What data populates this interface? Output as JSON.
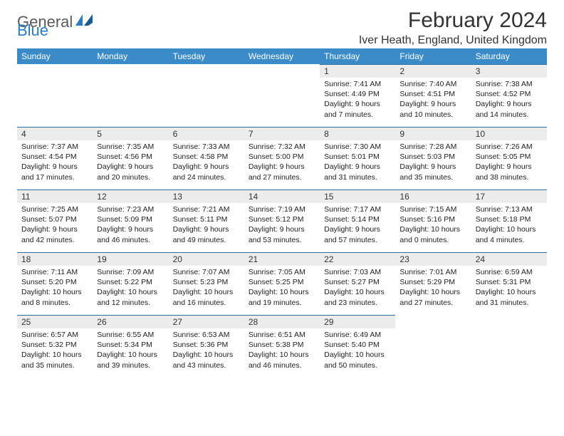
{
  "brand": {
    "text1": "General",
    "text2": "Blue"
  },
  "title": "February 2024",
  "location": "Iver Heath, England, United Kingdom",
  "colors": {
    "header_bg": "#3b8bc9",
    "header_fg": "#ffffff",
    "daynum_bg": "#ececec",
    "daynum_border": "#2d6fa3",
    "logo_gray": "#5a5a5a",
    "logo_blue": "#2d7bbf"
  },
  "day_names": [
    "Sunday",
    "Monday",
    "Tuesday",
    "Wednesday",
    "Thursday",
    "Friday",
    "Saturday"
  ],
  "weeks": [
    [
      null,
      null,
      null,
      null,
      {
        "n": "1",
        "sr": "Sunrise: 7:41 AM",
        "ss": "Sunset: 4:49 PM",
        "dl": "Daylight: 9 hours and 7 minutes."
      },
      {
        "n": "2",
        "sr": "Sunrise: 7:40 AM",
        "ss": "Sunset: 4:51 PM",
        "dl": "Daylight: 9 hours and 10 minutes."
      },
      {
        "n": "3",
        "sr": "Sunrise: 7:38 AM",
        "ss": "Sunset: 4:52 PM",
        "dl": "Daylight: 9 hours and 14 minutes."
      }
    ],
    [
      {
        "n": "4",
        "sr": "Sunrise: 7:37 AM",
        "ss": "Sunset: 4:54 PM",
        "dl": "Daylight: 9 hours and 17 minutes."
      },
      {
        "n": "5",
        "sr": "Sunrise: 7:35 AM",
        "ss": "Sunset: 4:56 PM",
        "dl": "Daylight: 9 hours and 20 minutes."
      },
      {
        "n": "6",
        "sr": "Sunrise: 7:33 AM",
        "ss": "Sunset: 4:58 PM",
        "dl": "Daylight: 9 hours and 24 minutes."
      },
      {
        "n": "7",
        "sr": "Sunrise: 7:32 AM",
        "ss": "Sunset: 5:00 PM",
        "dl": "Daylight: 9 hours and 27 minutes."
      },
      {
        "n": "8",
        "sr": "Sunrise: 7:30 AM",
        "ss": "Sunset: 5:01 PM",
        "dl": "Daylight: 9 hours and 31 minutes."
      },
      {
        "n": "9",
        "sr": "Sunrise: 7:28 AM",
        "ss": "Sunset: 5:03 PM",
        "dl": "Daylight: 9 hours and 35 minutes."
      },
      {
        "n": "10",
        "sr": "Sunrise: 7:26 AM",
        "ss": "Sunset: 5:05 PM",
        "dl": "Daylight: 9 hours and 38 minutes."
      }
    ],
    [
      {
        "n": "11",
        "sr": "Sunrise: 7:25 AM",
        "ss": "Sunset: 5:07 PM",
        "dl": "Daylight: 9 hours and 42 minutes."
      },
      {
        "n": "12",
        "sr": "Sunrise: 7:23 AM",
        "ss": "Sunset: 5:09 PM",
        "dl": "Daylight: 9 hours and 46 minutes."
      },
      {
        "n": "13",
        "sr": "Sunrise: 7:21 AM",
        "ss": "Sunset: 5:11 PM",
        "dl": "Daylight: 9 hours and 49 minutes."
      },
      {
        "n": "14",
        "sr": "Sunrise: 7:19 AM",
        "ss": "Sunset: 5:12 PM",
        "dl": "Daylight: 9 hours and 53 minutes."
      },
      {
        "n": "15",
        "sr": "Sunrise: 7:17 AM",
        "ss": "Sunset: 5:14 PM",
        "dl": "Daylight: 9 hours and 57 minutes."
      },
      {
        "n": "16",
        "sr": "Sunrise: 7:15 AM",
        "ss": "Sunset: 5:16 PM",
        "dl": "Daylight: 10 hours and 0 minutes."
      },
      {
        "n": "17",
        "sr": "Sunrise: 7:13 AM",
        "ss": "Sunset: 5:18 PM",
        "dl": "Daylight: 10 hours and 4 minutes."
      }
    ],
    [
      {
        "n": "18",
        "sr": "Sunrise: 7:11 AM",
        "ss": "Sunset: 5:20 PM",
        "dl": "Daylight: 10 hours and 8 minutes."
      },
      {
        "n": "19",
        "sr": "Sunrise: 7:09 AM",
        "ss": "Sunset: 5:22 PM",
        "dl": "Daylight: 10 hours and 12 minutes."
      },
      {
        "n": "20",
        "sr": "Sunrise: 7:07 AM",
        "ss": "Sunset: 5:23 PM",
        "dl": "Daylight: 10 hours and 16 minutes."
      },
      {
        "n": "21",
        "sr": "Sunrise: 7:05 AM",
        "ss": "Sunset: 5:25 PM",
        "dl": "Daylight: 10 hours and 19 minutes."
      },
      {
        "n": "22",
        "sr": "Sunrise: 7:03 AM",
        "ss": "Sunset: 5:27 PM",
        "dl": "Daylight: 10 hours and 23 minutes."
      },
      {
        "n": "23",
        "sr": "Sunrise: 7:01 AM",
        "ss": "Sunset: 5:29 PM",
        "dl": "Daylight: 10 hours and 27 minutes."
      },
      {
        "n": "24",
        "sr": "Sunrise: 6:59 AM",
        "ss": "Sunset: 5:31 PM",
        "dl": "Daylight: 10 hours and 31 minutes."
      }
    ],
    [
      {
        "n": "25",
        "sr": "Sunrise: 6:57 AM",
        "ss": "Sunset: 5:32 PM",
        "dl": "Daylight: 10 hours and 35 minutes."
      },
      {
        "n": "26",
        "sr": "Sunrise: 6:55 AM",
        "ss": "Sunset: 5:34 PM",
        "dl": "Daylight: 10 hours and 39 minutes."
      },
      {
        "n": "27",
        "sr": "Sunrise: 6:53 AM",
        "ss": "Sunset: 5:36 PM",
        "dl": "Daylight: 10 hours and 43 minutes."
      },
      {
        "n": "28",
        "sr": "Sunrise: 6:51 AM",
        "ss": "Sunset: 5:38 PM",
        "dl": "Daylight: 10 hours and 46 minutes."
      },
      {
        "n": "29",
        "sr": "Sunrise: 6:49 AM",
        "ss": "Sunset: 5:40 PM",
        "dl": "Daylight: 10 hours and 50 minutes."
      },
      null,
      null
    ]
  ]
}
